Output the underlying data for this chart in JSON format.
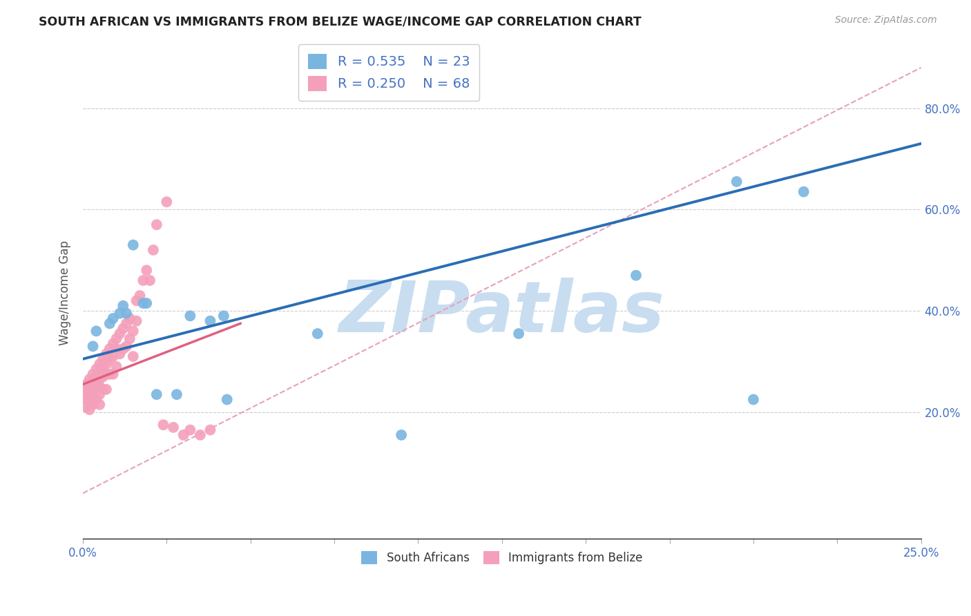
{
  "title": "SOUTH AFRICAN VS IMMIGRANTS FROM BELIZE WAGE/INCOME GAP CORRELATION CHART",
  "source": "Source: ZipAtlas.com",
  "ylabel": "Wage/Income Gap",
  "xlim": [
    0.0,
    0.25
  ],
  "ylim": [
    -0.05,
    0.92
  ],
  "xticklabels_ends": [
    "0.0%",
    "25.0%"
  ],
  "xticks_all": [
    0.0,
    0.025,
    0.05,
    0.075,
    0.1,
    0.125,
    0.15,
    0.175,
    0.2,
    0.225,
    0.25
  ],
  "yticks": [
    0.2,
    0.4,
    0.6,
    0.8
  ],
  "yticklabels": [
    "20.0%",
    "40.0%",
    "60.0%",
    "80.0%"
  ],
  "blue_color": "#7ab5e0",
  "pink_color": "#f4a0ba",
  "blue_line_color": "#2a6db5",
  "pink_line_color": "#e06080",
  "gray_dash_color": "#e8a0b8",
  "R_blue": 0.535,
  "N_blue": 23,
  "R_pink": 0.25,
  "N_pink": 68,
  "watermark": "ZIPatlas",
  "watermark_color_zip": "#c8ddf0",
  "watermark_color_atlas": "#a0c0e8",
  "legend_label_blue": "South Africans",
  "legend_label_pink": "Immigrants from Belize",
  "blue_line_x0": 0.0,
  "blue_line_y0": 0.305,
  "blue_line_x1": 0.25,
  "blue_line_y1": 0.73,
  "pink_line_x0": 0.0,
  "pink_line_y0": 0.255,
  "pink_line_x1": 0.047,
  "pink_line_y1": 0.375,
  "gray_line_x0": 0.0,
  "gray_line_y0": 0.04,
  "gray_line_x1": 0.25,
  "gray_line_y1": 0.88,
  "blue_x": [
    0.003,
    0.004,
    0.008,
    0.009,
    0.011,
    0.012,
    0.013,
    0.015,
    0.018,
    0.019,
    0.022,
    0.028,
    0.032,
    0.038,
    0.042,
    0.043,
    0.07,
    0.095,
    0.13,
    0.165,
    0.195,
    0.2,
    0.215
  ],
  "blue_y": [
    0.33,
    0.36,
    0.375,
    0.385,
    0.395,
    0.41,
    0.395,
    0.53,
    0.415,
    0.415,
    0.235,
    0.235,
    0.39,
    0.38,
    0.39,
    0.225,
    0.355,
    0.155,
    0.355,
    0.47,
    0.655,
    0.225,
    0.635
  ],
  "pink_x": [
    0.001,
    0.001,
    0.001,
    0.001,
    0.001,
    0.002,
    0.002,
    0.002,
    0.002,
    0.002,
    0.002,
    0.003,
    0.003,
    0.003,
    0.003,
    0.003,
    0.004,
    0.004,
    0.004,
    0.004,
    0.005,
    0.005,
    0.005,
    0.005,
    0.005,
    0.005,
    0.006,
    0.006,
    0.006,
    0.006,
    0.007,
    0.007,
    0.007,
    0.007,
    0.008,
    0.008,
    0.008,
    0.009,
    0.009,
    0.009,
    0.01,
    0.01,
    0.01,
    0.011,
    0.011,
    0.012,
    0.012,
    0.013,
    0.013,
    0.014,
    0.014,
    0.015,
    0.015,
    0.016,
    0.016,
    0.017,
    0.018,
    0.019,
    0.02,
    0.021,
    0.022,
    0.024,
    0.025,
    0.027,
    0.03,
    0.032,
    0.035,
    0.038
  ],
  "pink_y": [
    0.255,
    0.245,
    0.235,
    0.225,
    0.21,
    0.265,
    0.255,
    0.245,
    0.235,
    0.22,
    0.205,
    0.275,
    0.265,
    0.25,
    0.235,
    0.215,
    0.285,
    0.27,
    0.255,
    0.225,
    0.295,
    0.28,
    0.265,
    0.25,
    0.235,
    0.215,
    0.305,
    0.29,
    0.27,
    0.245,
    0.315,
    0.295,
    0.275,
    0.245,
    0.325,
    0.305,
    0.275,
    0.335,
    0.31,
    0.275,
    0.345,
    0.325,
    0.29,
    0.355,
    0.315,
    0.365,
    0.325,
    0.375,
    0.33,
    0.385,
    0.345,
    0.36,
    0.31,
    0.42,
    0.38,
    0.43,
    0.46,
    0.48,
    0.46,
    0.52,
    0.57,
    0.175,
    0.615,
    0.17,
    0.155,
    0.165,
    0.155,
    0.165
  ]
}
